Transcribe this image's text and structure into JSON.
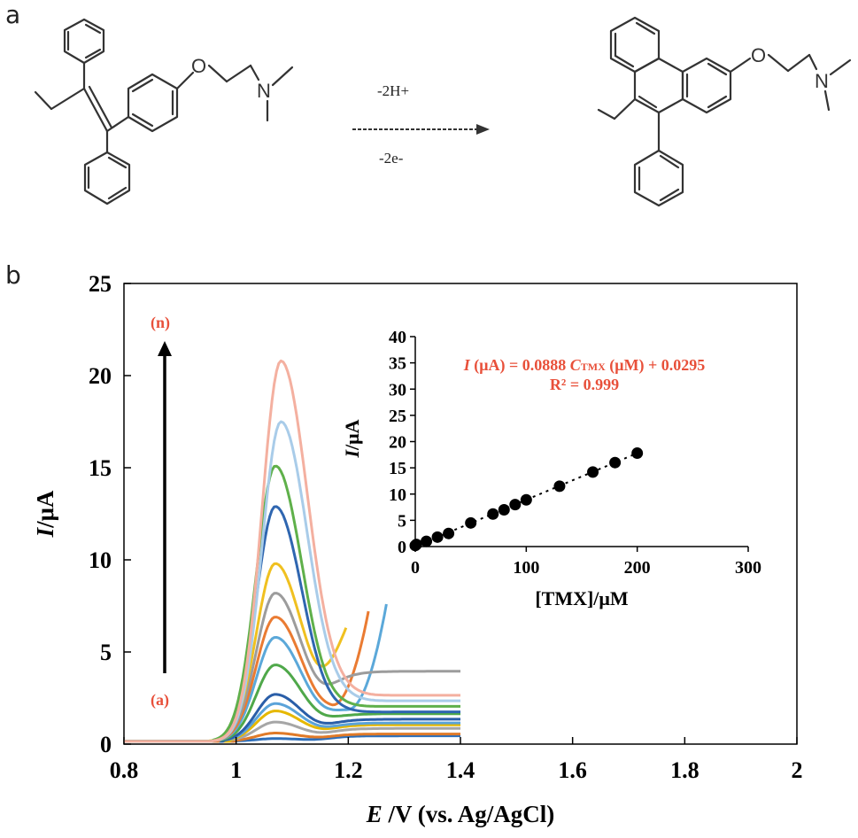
{
  "panels": {
    "a": "a",
    "b": "b"
  },
  "reaction": {
    "above_arrow": "-2H+",
    "below_arrow": "-2e-"
  },
  "atoms": {
    "oxygen": "O",
    "nitrogen": "N"
  },
  "chart_data": [
    {
      "type": "line",
      "xlabel_italic": "E",
      "xlabel_rest": " /V (vs. Ag/AgCl)",
      "ylabel_italic": "I",
      "ylabel_rest": "/μA",
      "xlim": [
        0.8,
        2.0
      ],
      "ylim": [
        0,
        25
      ],
      "x_ticks": [
        "0.8",
        "1",
        "1.2",
        "1.4",
        "1.6",
        "1.8",
        "2"
      ],
      "y_ticks": [
        "0",
        "5",
        "10",
        "15",
        "20",
        "25"
      ],
      "grid": false,
      "annotations": {
        "top": "(n)",
        "bottom": "(a)"
      },
      "x_range_of_curves": [
        0.8,
        1.4
      ],
      "series": [
        {
          "color": "#2e6fba",
          "peak_x": 1.07,
          "peak_y": 0.3,
          "tail_y": 0.3,
          "onset_x": 1.0,
          "rise_x": null
        },
        {
          "color": "#e07a28",
          "peak_x": 1.07,
          "peak_y": 0.6,
          "tail_y": 0.4,
          "onset_x": 1.0,
          "rise_x": null
        },
        {
          "color": "#a6a6a6",
          "peak_x": 1.07,
          "peak_y": 1.2,
          "tail_y": 0.7,
          "onset_x": 0.99,
          "rise_x": null
        },
        {
          "color": "#e6b800",
          "peak_x": 1.07,
          "peak_y": 1.8,
          "tail_y": 0.9,
          "onset_x": 0.99,
          "rise_x": null
        },
        {
          "color": "#5ba3d9",
          "peak_x": 1.07,
          "peak_y": 2.2,
          "tail_y": 1.0,
          "onset_x": 0.98,
          "rise_x": null
        },
        {
          "color": "#2a5ea8",
          "peak_x": 1.07,
          "peak_y": 2.7,
          "tail_y": 1.2,
          "onset_x": 0.98,
          "rise_x": null
        },
        {
          "color": "#4fa84a",
          "peak_x": 1.07,
          "peak_y": 4.3,
          "tail_y": 1.5,
          "onset_x": 0.97,
          "rise_x": null
        },
        {
          "color": "#5ba8d9",
          "peak_x": 1.07,
          "peak_y": 5.8,
          "tail_y": 1.8,
          "onset_x": 0.97,
          "rise_x": 1.26,
          "rise_to": 6.2
        },
        {
          "color": "#ea7b32",
          "peak_x": 1.07,
          "peak_y": 6.9,
          "tail_y": 2.0,
          "onset_x": 0.97,
          "rise_x": 1.23,
          "rise_to": 6.2
        },
        {
          "color": "#9c9c9c",
          "peak_x": 1.07,
          "peak_y": 8.2,
          "tail_y": 3.8,
          "onset_x": 0.96,
          "rise_x": null
        },
        {
          "color": "#f0c020",
          "peak_x": 1.07,
          "peak_y": 9.8,
          "tail_y": 4.5,
          "onset_x": 0.9,
          "rise_x": 1.19,
          "rise_to": 6.2
        },
        {
          "color": "#2f66b0",
          "peak_x": 1.07,
          "peak_y": 12.9,
          "tail_y": 1.6,
          "onset_x": 0.96,
          "rise_x": null
        },
        {
          "color": "#5fb04a",
          "peak_x": 1.07,
          "peak_y": 15.1,
          "tail_y": 1.9,
          "onset_x": 0.96,
          "rise_x": null
        },
        {
          "color": "#a9cce9",
          "peak_x": 1.08,
          "peak_y": 17.5,
          "tail_y": 2.2,
          "onset_x": 0.96,
          "rise_x": null
        },
        {
          "color": "#f4b0a0",
          "peak_x": 1.08,
          "peak_y": 20.8,
          "tail_y": 2.5,
          "onset_x": 0.96,
          "rise_x": null
        }
      ]
    },
    {
      "type": "scatter",
      "xlabel": "[TMX]/μM",
      "ylabel_italic": "I",
      "ylabel_rest": "/μA",
      "xlim": [
        0,
        300
      ],
      "ylim": [
        0,
        40
      ],
      "x_ticks": [
        "0",
        "100",
        "200",
        "300"
      ],
      "y_ticks": [
        "0",
        "5",
        "10",
        "15",
        "20",
        "25",
        "30",
        "35",
        "40"
      ],
      "points": [
        {
          "x": 0,
          "y": 0.2
        },
        {
          "x": 1,
          "y": 0.4
        },
        {
          "x": 10,
          "y": 1.0
        },
        {
          "x": 20,
          "y": 1.8
        },
        {
          "x": 30,
          "y": 2.5
        },
        {
          "x": 50,
          "y": 4.5
        },
        {
          "x": 70,
          "y": 6.2
        },
        {
          "x": 80,
          "y": 7.0
        },
        {
          "x": 90,
          "y": 8.0
        },
        {
          "x": 100,
          "y": 8.9
        },
        {
          "x": 130,
          "y": 11.5
        },
        {
          "x": 160,
          "y": 14.2
        },
        {
          "x": 180,
          "y": 16.0
        },
        {
          "x": 200,
          "y": 17.8
        }
      ],
      "fit": {
        "slope": 0.0888,
        "intercept": 0.0295
      },
      "equation": {
        "p1": "I",
        "p2": " (μA) = 0.0888 ",
        "p3": "C",
        "p4": "TMX",
        "p5": " (μM) + 0.0295",
        "r2": "R² = 0.999"
      }
    }
  ]
}
